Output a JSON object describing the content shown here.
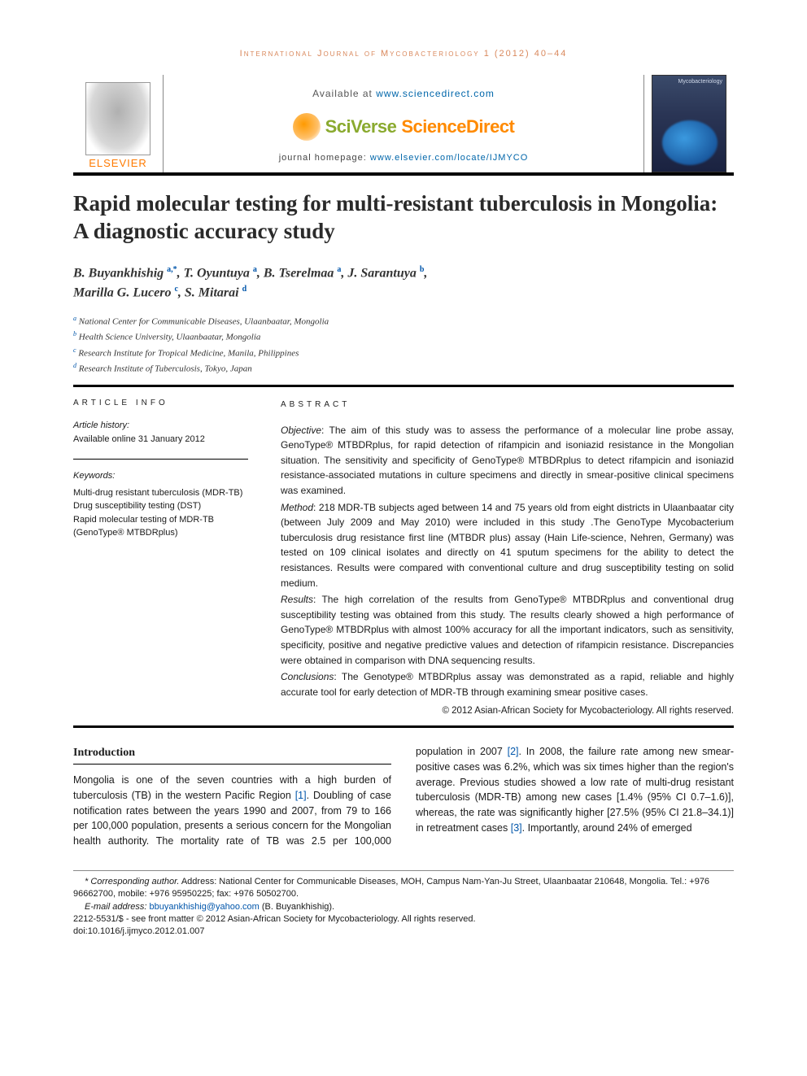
{
  "running_head": "International Journal of Mycobacteriology 1 (2012) 40–44",
  "banner": {
    "available_prefix": "Available at ",
    "available_url": "www.sciencedirect.com",
    "brand_a": "SciVerse ",
    "brand_b": "ScienceDirect",
    "homepage_prefix": "journal homepage: ",
    "homepage_url": "www.elsevier.com/locate/IJMYCO",
    "elsevier_label": "ELSEVIER",
    "cover_text": "Mycobacteriology"
  },
  "title": "Rapid molecular testing for multi-resistant tuberculosis in Mongolia: A diagnostic accuracy study",
  "authors": {
    "a1": "B. Buyankhishig",
    "a1_aff": "a,",
    "a1_ast": "*",
    "a2": "T. Oyuntuya",
    "a2_aff": "a",
    "a3": "B. Tserelmaa",
    "a3_aff": "a",
    "a4": "J. Sarantuya",
    "a4_aff": "b",
    "a5": "Marilla G. Lucero",
    "a5_aff": "c",
    "a6": "S. Mitarai",
    "a6_aff": "d"
  },
  "affiliations": {
    "a": "National Center for Communicable Diseases, Ulaanbaatar, Mongolia",
    "b": "Health Science University, Ulaanbaatar, Mongolia",
    "c": "Research Institute for Tropical Medicine, Manila, Philippines",
    "d": "Research Institute of Tuberculosis, Tokyo, Japan"
  },
  "info": {
    "head": "ARTICLE INFO",
    "history_label": "Article history:",
    "history_value": "Available online 31 January 2012",
    "keywords_label": "Keywords:",
    "keywords": [
      "Multi-drug resistant tuberculosis (MDR-TB)",
      "Drug susceptibility testing (DST)",
      "Rapid molecular testing of MDR-TB (GenoType® MTBDRplus)"
    ]
  },
  "abstract": {
    "head": "ABSTRACT",
    "objective_lead": "Objective",
    "objective": ": The aim of this study was to assess the performance of a molecular line probe assay, GenoType® MTBDRplus, for rapid detection of rifampicin and isoniazid resistance in the Mongolian situation. The sensitivity and specificity of GenoType® MTBDRplus to detect rifampicin and isoniazid resistance-associated mutations in culture specimens and directly in smear-positive clinical specimens was examined.",
    "method_lead": "Method",
    "method": ": 218 MDR-TB subjects aged between 14 and 75 years old from eight districts in Ulaanbaatar city (between July 2009 and May 2010) were included in this study .The GenoType Mycobacterium tuberculosis drug resistance first line (MTBDR plus) assay (Hain Life-science, Nehren, Germany) was tested on 109 clinical isolates and directly on 41 sputum specimens for the ability to detect the resistances. Results were compared with conventional culture and drug susceptibility testing on solid medium.",
    "results_lead": "Results",
    "results": ": The high correlation of the results from GenoType® MTBDRplus and conventional drug susceptibility testing was obtained from this study. The results clearly showed a high performance of GenoType® MTBDRplus with almost 100% accuracy for all the important indicators, such as sensitivity, specificity, positive and negative predictive values and detection of rifampicin resistance. Discrepancies were obtained in comparison with DNA sequencing results.",
    "conclusions_lead": "Conclusions",
    "conclusions": ": The Genotype® MTBDRplus assay was demonstrated as a rapid, reliable and highly accurate tool for early detection of MDR-TB through examining smear positive cases.",
    "copyright": "© 2012 Asian-African Society for Mycobacteriology. All rights reserved."
  },
  "body": {
    "intro_head": "Introduction",
    "p1a": "Mongolia is one of the seven countries with a high burden of tuberculosis (TB) in the western Pacific Region ",
    "ref1": "[1]",
    "p1b": ". Doubling of case notification rates between the years 1990 and 2007, from 79 to 166 per 100,000 population, presents a serious concern for the Mongolian health authority. The mortality rate of TB",
    "p2a": "was 2.5 per 100,000 population in 2007 ",
    "ref2": "[2]",
    "p2b": ". In 2008, the failure rate among new smear-positive cases was 6.2%, which was six times higher than the region's average. Previous studies showed a low rate of multi-drug resistant tuberculosis (MDR-TB) among new cases [1.4% (95% CI 0.7–1.6)], whereas, the rate was significantly higher [27.5% (95% CI 21.8–34.1)] in retreatment cases ",
    "ref3": "[3]",
    "p2c": ". Importantly, around 24% of emerged"
  },
  "footnotes": {
    "corr_label": "* Corresponding author.",
    "corr_text": " Address: National Center for Communicable Diseases, MOH, Campus Nam-Yan-Ju Street, Ulaanbaatar 210648, Mongolia. Tel.: +976 96662700, mobile: +976 95950225; fax: +976 50502700.",
    "email_label": "E-mail address: ",
    "email": "bbuyankhishig@yahoo.com",
    "email_tail": " (B. Buyankhishig).",
    "issn": "2212-5531/$ - see front matter © 2012 Asian-African Society for Mycobacteriology. All rights reserved.",
    "doi": "doi:10.1016/j.ijmyco.2012.01.007"
  },
  "colors": {
    "accent_orange": "#ff8a00",
    "accent_green": "#8aaa2f",
    "link_blue": "#0055aa",
    "head_peach": "#d9885c"
  }
}
